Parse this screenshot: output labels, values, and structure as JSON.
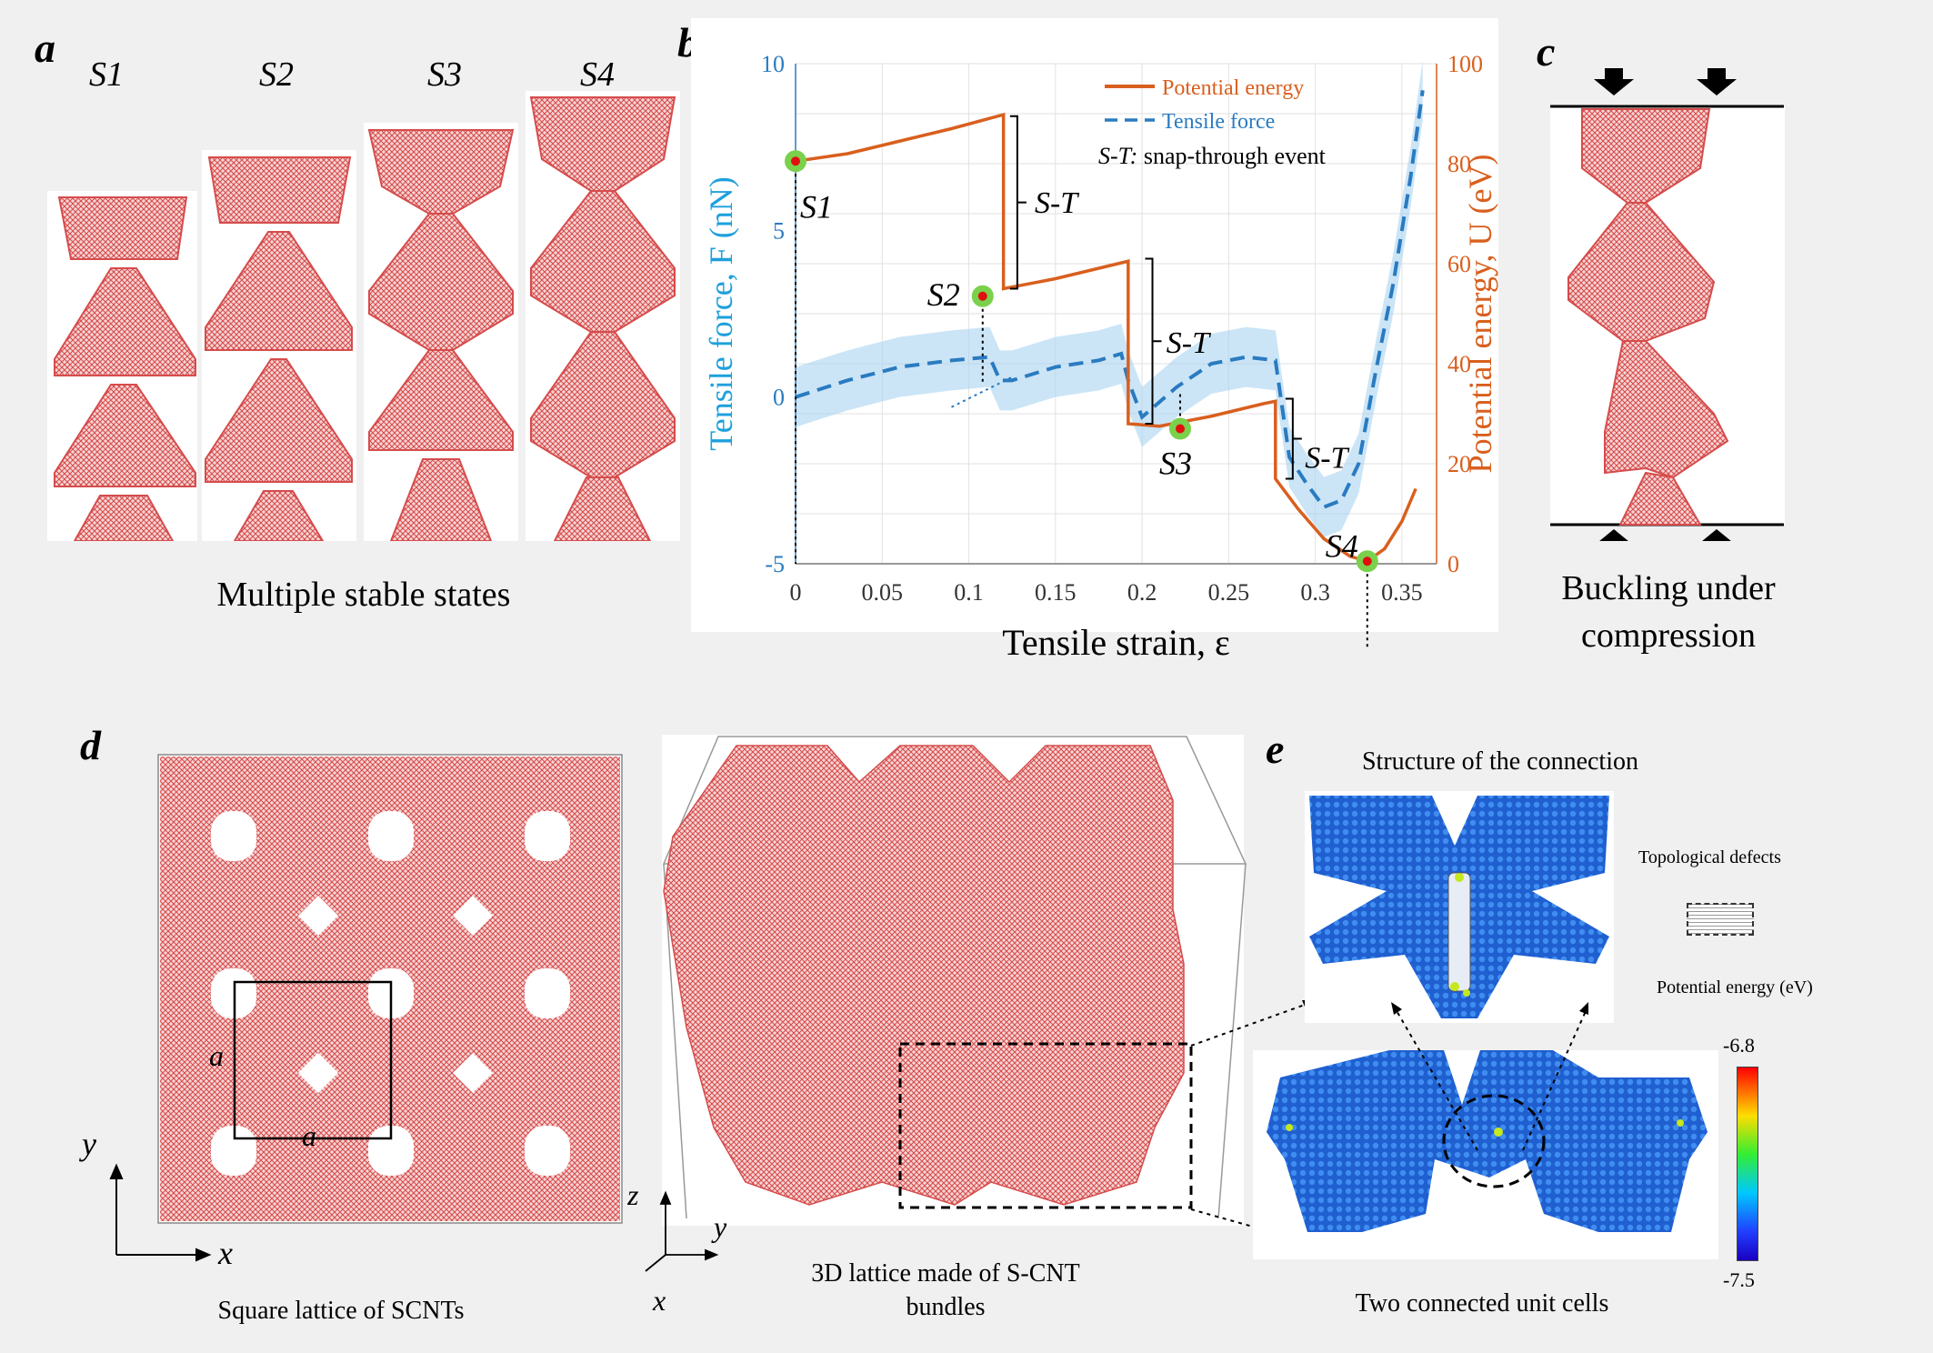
{
  "panel_a": {
    "letter": "a",
    "states": [
      "S1",
      "S2",
      "S3",
      "S4"
    ],
    "caption": "Multiple stable states"
  },
  "panel_b": {
    "letter": "b",
    "colors": {
      "energy": "#d95f1e",
      "force": "#2a7bc0",
      "force_band": "#a9d4f2",
      "marker_ring": "#7ad14b",
      "marker_dot": "#e01010"
    },
    "legend": {
      "energy": "Potential energy",
      "force": "Tensile force",
      "note_prefix": "S-T:",
      "note_text": " snap-through event"
    },
    "st_labels": [
      "S-T",
      "S-T",
      "S-T"
    ],
    "point_labels": [
      "S1",
      "S2",
      "S3",
      "S4"
    ],
    "chart_data": {
      "type": "line",
      "xlabel": "Tensile strain, ε",
      "ylabel_left": "Tensile force, F (nN)",
      "ylabel_right": "Potential energy, U (eV)",
      "xlim": [
        0,
        0.37
      ],
      "ylim_left": [
        -5,
        10
      ],
      "ylim_right": [
        0,
        100
      ],
      "x_ticks": [
        "0",
        "0.05",
        "0.1",
        "0.15",
        "0.2",
        "0.25",
        "0.3",
        "0.35"
      ],
      "y_ticks_left": [
        "-5",
        "0",
        "5",
        "10"
      ],
      "y_ticks_right": [
        "0",
        "20",
        "40",
        "60",
        "80",
        "100"
      ],
      "grid": true,
      "legend_position": "top-right",
      "series": [
        {
          "name": "Potential energy",
          "axis": "right",
          "x": [
            0,
            0.03,
            0.06,
            0.09,
            0.12,
            0.12,
            0.15,
            0.18,
            0.192,
            0.192,
            0.21,
            0.24,
            0.27,
            0.277,
            0.277,
            0.29,
            0.305,
            0.32,
            0.33,
            0.34,
            0.35,
            0.358
          ],
          "values": [
            80.5,
            82,
            84.5,
            87,
            89.8,
            55,
            57,
            59.5,
            60.5,
            28,
            27.5,
            29.5,
            32,
            32.5,
            17,
            11,
            5,
            1.5,
            0.5,
            3,
            8.5,
            15
          ]
        },
        {
          "name": "Tensile force",
          "axis": "left",
          "x": [
            0,
            0.03,
            0.06,
            0.09,
            0.112,
            0.118,
            0.125,
            0.15,
            0.175,
            0.188,
            0.192,
            0.2,
            0.22,
            0.24,
            0.26,
            0.277,
            0.285,
            0.295,
            0.305,
            0.315,
            0.325,
            0.335,
            0.345,
            0.355,
            0.362
          ],
          "values": [
            0,
            0.5,
            0.9,
            1.1,
            1.2,
            0.5,
            0.5,
            0.9,
            1.1,
            1.3,
            0.5,
            -0.6,
            0.3,
            1.0,
            1.2,
            1.1,
            -1.8,
            -2.6,
            -3.3,
            -3.1,
            -2.0,
            0.8,
            3.4,
            6.6,
            9.2
          ]
        }
      ],
      "stable_states": [
        {
          "name": "S1",
          "x": 0.0,
          "energy": 80.5
        },
        {
          "name": "S2",
          "x": 0.108,
          "energy": 53.5
        },
        {
          "name": "S3",
          "x": 0.222,
          "energy": 27
        },
        {
          "name": "S4",
          "x": 0.33,
          "energy": 0.5
        }
      ]
    }
  },
  "panel_c": {
    "letter": "c",
    "caption_line1": "Buckling under",
    "caption_line2": "compression"
  },
  "panel_d": {
    "letter": "d",
    "lattice_label": "a",
    "axis_x": "x",
    "axis_y": "y",
    "axis_z": "z",
    "caption_square": "Square lattice of SCNTs",
    "caption_3d_line1": "3D lattice made of S-CNT",
    "caption_3d_line2": "bundles"
  },
  "panel_e": {
    "letter": "e",
    "title": "Structure of the connection",
    "legend_defects": "Topological defects",
    "legend_energy": "Potential energy (eV)",
    "colorbar_max": "-6.8",
    "colorbar_min": "-7.5",
    "caption": "Two connected unit cells"
  }
}
